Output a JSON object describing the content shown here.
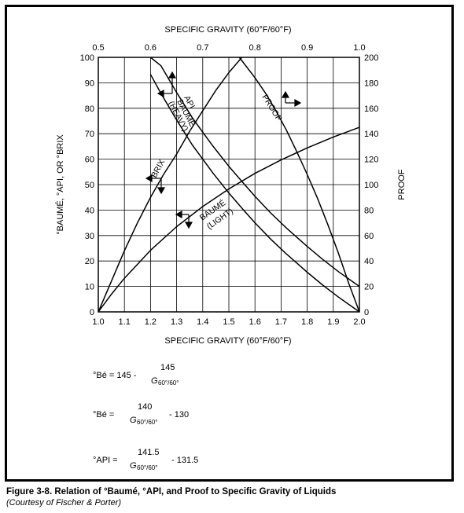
{
  "chart_data": {
    "type": "line",
    "x_bottom": {
      "label": "SPECIFIC GRAVITY  (60°F/60°F)",
      "range": [
        1.0,
        2.0
      ],
      "ticks": [
        "1.0",
        "1.1",
        "1.2",
        "1.3",
        "1.4",
        "1.5",
        "1.6",
        "1.7",
        "1.8",
        "1.9",
        "2.0"
      ]
    },
    "x_top": {
      "label": "SPECIFIC GRAVITY  (60°F/60°F)",
      "range": [
        0.5,
        1.0
      ],
      "ticks": [
        "0.5",
        "0.6",
        "0.7",
        "0.8",
        "0.9",
        "1.0"
      ]
    },
    "y_left": {
      "label": "°BAUMÉ, °API, OR °BRIX",
      "range": [
        0,
        100
      ],
      "ticks": [
        "0",
        "10",
        "20",
        "30",
        "40",
        "50",
        "60",
        "70",
        "80",
        "90",
        "100"
      ]
    },
    "y_right": {
      "label": "PROOF",
      "range": [
        0,
        200
      ],
      "ticks": [
        "0",
        "20",
        "40",
        "60",
        "80",
        "100",
        "120",
        "140",
        "160",
        "180",
        "200"
      ]
    },
    "grid": true,
    "series": [
      {
        "name": "API",
        "axis": "top-left",
        "x": [
          0.6,
          0.62,
          0.65,
          0.68,
          0.7,
          0.72,
          0.75,
          0.78,
          0.8,
          0.83,
          0.86,
          0.9,
          0.93,
          0.96,
          1.0
        ],
        "y": [
          104.3,
          96.7,
          86.2,
          76.3,
          70.6,
          65.0,
          57.2,
          50.1,
          45.4,
          38.9,
          33.0,
          25.7,
          20.6,
          15.8,
          10.0
        ]
      },
      {
        "name": "BAUMÉ (HEAVY)",
        "axis": "top-left",
        "x": [
          0.6,
          0.62,
          0.65,
          0.68,
          0.7,
          0.72,
          0.75,
          0.78,
          0.8,
          0.83,
          0.86,
          0.9,
          0.93,
          0.96,
          1.0
        ],
        "y": [
          93.3,
          85.8,
          75.4,
          65.6,
          60.0,
          54.4,
          46.7,
          39.6,
          35.0,
          28.6,
          22.8,
          15.6,
          10.5,
          5.8,
          0.0
        ]
      },
      {
        "name": "BRIX",
        "axis": "bottom-left",
        "x": [
          1.0,
          1.05,
          1.1,
          1.15,
          1.2,
          1.25,
          1.3,
          1.35,
          1.4,
          1.45,
          1.5,
          1.55
        ],
        "y": [
          0,
          12,
          24,
          35,
          45,
          54,
          62,
          71,
          79,
          87,
          94,
          100
        ]
      },
      {
        "name": "BAUMÉ (LIGHT)",
        "axis": "bottom-left",
        "x": [
          1.0,
          1.05,
          1.1,
          1.2,
          1.3,
          1.4,
          1.5,
          1.6,
          1.7,
          1.8,
          1.9,
          2.0
        ],
        "y": [
          0,
          6.9,
          13.2,
          24.2,
          33.5,
          41.4,
          48.3,
          54.4,
          59.7,
          64.4,
          68.7,
          72.5
        ]
      },
      {
        "name": "PROOF",
        "axis": "top-right",
        "x": [
          0.77,
          0.8,
          0.82,
          0.84,
          0.86,
          0.88,
          0.9,
          0.92,
          0.94,
          0.96,
          0.98,
          1.0
        ],
        "y": [
          200,
          184,
          172,
          158,
          143,
          126,
          108,
          89,
          68,
          46,
          22,
          0
        ]
      }
    ],
    "annotations": [
      "API",
      "BAUMÉ",
      "(HEAVY)",
      "PROOF",
      "BRIX",
      "BAUMÉ",
      "(LIGHT)"
    ]
  },
  "formulas": {
    "f1": {
      "prefix": "°Bé = 145 -",
      "numerator": "145",
      "denominator": "G",
      "sub": "60°/60°"
    },
    "f2": {
      "prefix": "°Bé =",
      "numerator": "140",
      "denominator": "G",
      "sub": "60°/60°",
      "suffix": "- 130"
    },
    "f3": {
      "prefix": "°API =",
      "numerator": "141.5",
      "denominator": "G",
      "sub": "60°/60°",
      "suffix": "- 131.5"
    }
  },
  "caption": "Figure 3-8. Relation of °Baumé, °API, and Proof to Specific Gravity of Liquids",
  "credit": "(Courtesy of Fischer & Porter)"
}
